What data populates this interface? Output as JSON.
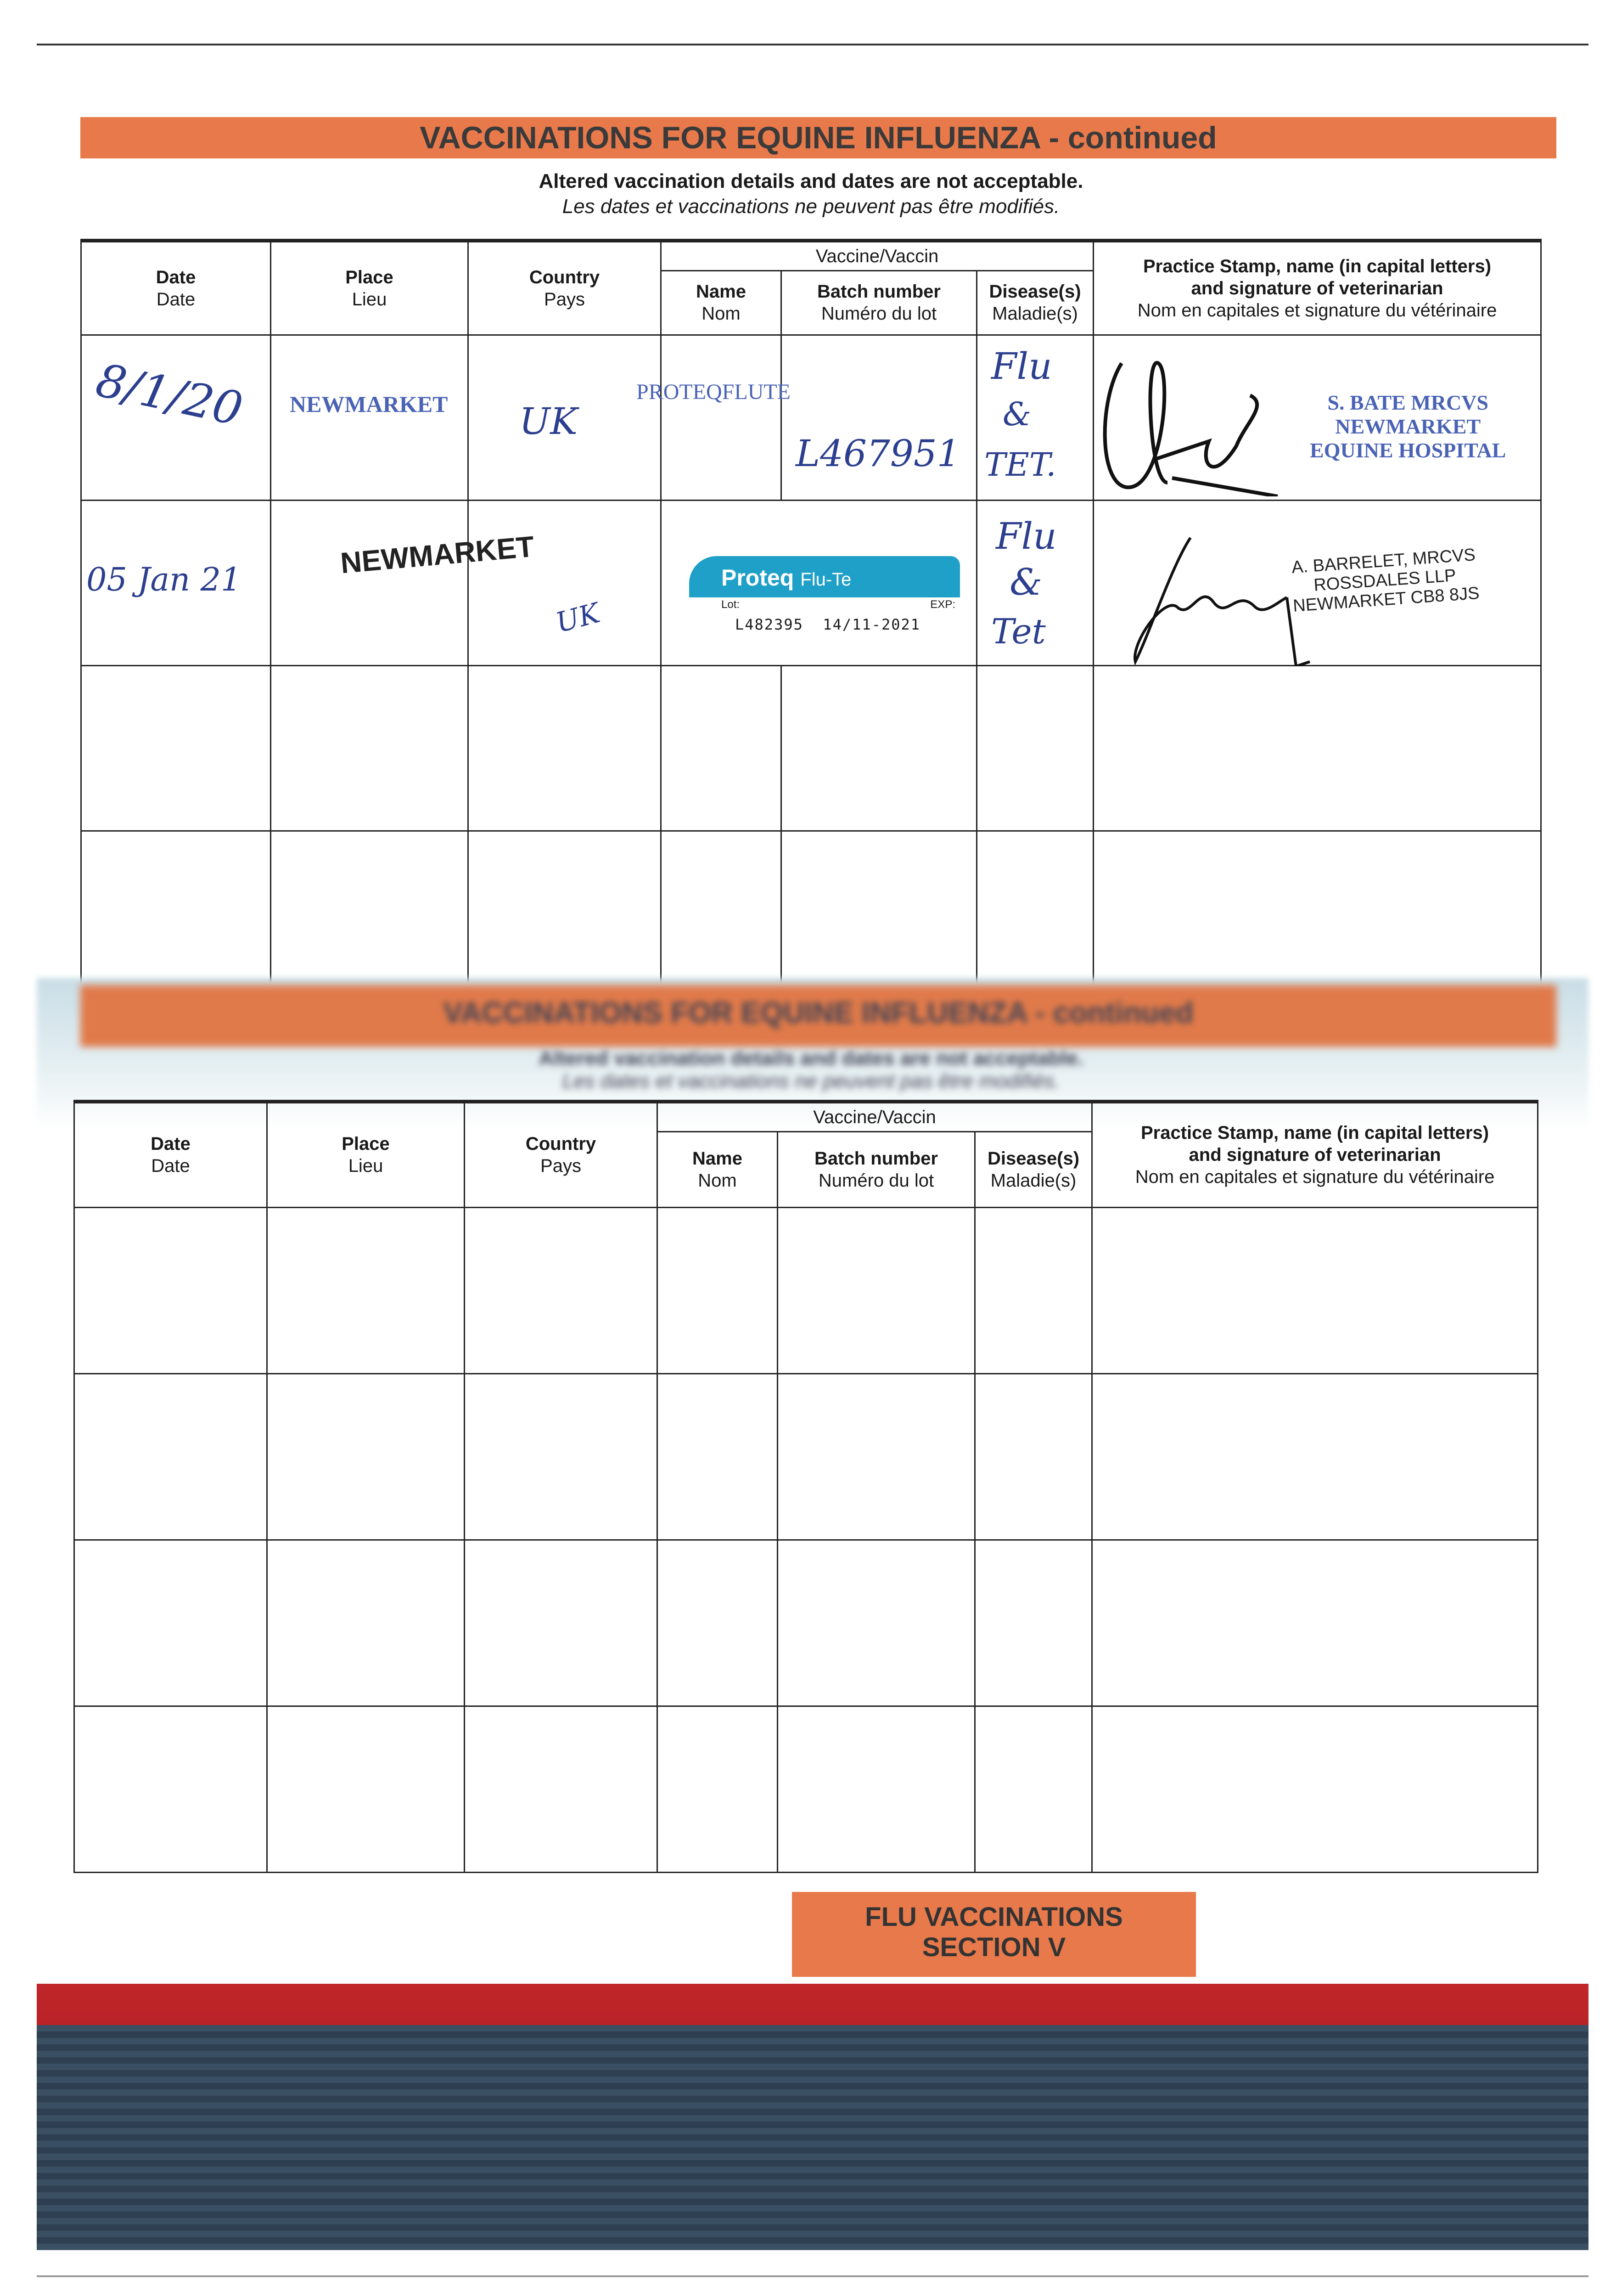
{
  "page": {
    "banner_title": "VACCINATIONS FOR EQUINE INFLUENZA - continued",
    "notice_en": "Altered vaccination details and dates are not acceptable.",
    "notice_fr": "Les dates et vaccinations ne peuvent pas être modifiés.",
    "section_label_line1": "FLU VACCINATIONS",
    "section_label_line2": "SECTION V",
    "banner_color": "#e8794a"
  },
  "table_header": {
    "date_en": "Date",
    "date_fr": "Date",
    "place_en": "Place",
    "place_fr": "Lieu",
    "country_en": "Country",
    "country_fr": "Pays",
    "vaccine": "Vaccine/Vaccin",
    "name_en": "Name",
    "name_fr": "Nom",
    "batch_en": "Batch number",
    "batch_fr": "Numéro du lot",
    "disease_en": "Disease(s)",
    "disease_fr": "Maladie(s)",
    "stamp_en_1": "Practice Stamp, name (in capital letters)",
    "stamp_en_2": "and signature of veterinarian",
    "stamp_fr": "Nom en capitales et signature du vétérinaire"
  },
  "entries": [
    {
      "date": "8/1/20",
      "place": "NEWMARKET",
      "country": "UK",
      "name": "PROTEQFLUTE",
      "batch": "L467951",
      "disease": [
        "Flu",
        "&",
        "TET."
      ],
      "vet_stamp": [
        "S. BATE MRCVS",
        "NEWMARKET",
        "EQUINE HOSPITAL"
      ]
    },
    {
      "date": "05 Jan 21",
      "place": "NEWMARKET",
      "country": "UK",
      "label": {
        "brand": "Proteq",
        "product": "Flu-Te",
        "lot_label": "Lot:",
        "exp_label": "EXP:",
        "lot": "L482395",
        "exp": "14/11-2021"
      },
      "disease": [
        "Flu",
        "&",
        "Tet"
      ],
      "vet_stamp": [
        "A. BARRELET, MRCVS",
        "ROSSDALES LLP",
        "NEWMARKET CB8 8JS"
      ]
    }
  ]
}
